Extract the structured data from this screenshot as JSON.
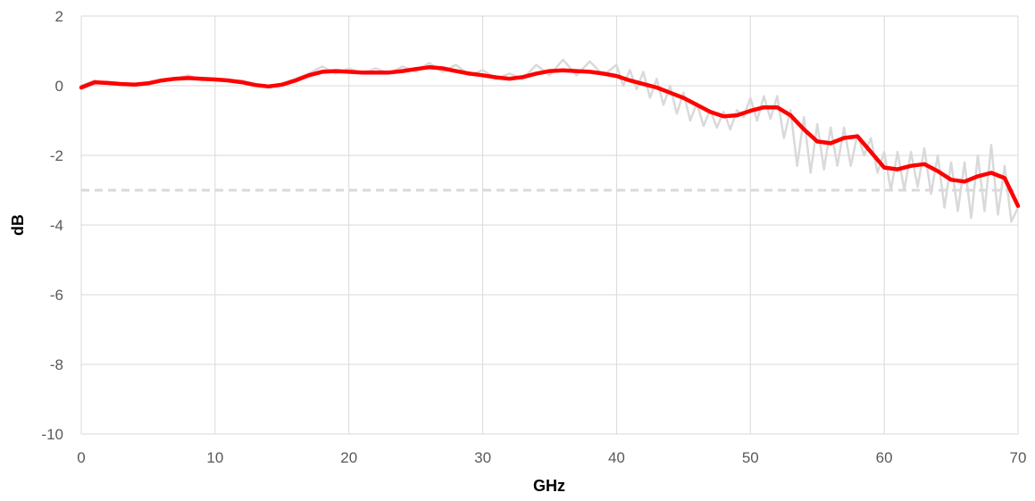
{
  "chart_data": {
    "type": "line",
    "title": "",
    "xlabel": "GHz",
    "ylabel": "dB",
    "xlim": [
      0,
      70
    ],
    "ylim": [
      -10,
      2
    ],
    "x_ticks": [
      0,
      10,
      20,
      30,
      40,
      50,
      60,
      70
    ],
    "y_ticks": [
      2,
      0,
      -2,
      -4,
      -6,
      -8,
      -10
    ],
    "x_tick_labels": [
      "0",
      "10",
      "20",
      "30",
      "40",
      "50",
      "60",
      "70"
    ],
    "y_tick_labels": [
      "2",
      "0",
      "-2",
      "-4",
      "-6",
      "-8",
      "-10"
    ],
    "grid": true,
    "legend": "none",
    "reference_line": {
      "y": -3,
      "style": "dashed",
      "color": "#d9d9d9"
    },
    "series": [
      {
        "role": "raw",
        "color": "#d9d9d9",
        "x": [
          0,
          1,
          2,
          3,
          4,
          5,
          6,
          7,
          8,
          9,
          10,
          11,
          12,
          13,
          14,
          15,
          16,
          17,
          18,
          19,
          20,
          21,
          22,
          23,
          24,
          25,
          26,
          27,
          28,
          29,
          30,
          31,
          32,
          33,
          34,
          35,
          36,
          37,
          38,
          39,
          40,
          40.5,
          41,
          41.5,
          42,
          42.5,
          43,
          43.5,
          44,
          44.5,
          45,
          45.5,
          46,
          46.5,
          47,
          47.5,
          48,
          48.5,
          49,
          49.5,
          50,
          50.5,
          51,
          51.5,
          52,
          52.5,
          53,
          53.5,
          54,
          54.5,
          55,
          55.5,
          56,
          56.5,
          57,
          57.5,
          58,
          58.5,
          59,
          59.5,
          60,
          60.5,
          61,
          61.5,
          62,
          62.5,
          63,
          63.5,
          64,
          64.5,
          65,
          65.5,
          66,
          66.5,
          67,
          67.5,
          68,
          68.5,
          69,
          69.5,
          70
        ],
        "y": [
          0.0,
          0.15,
          0.05,
          0.05,
          0.0,
          0.05,
          0.15,
          0.2,
          0.3,
          0.15,
          0.2,
          0.15,
          0.15,
          0.05,
          0.0,
          0.05,
          0.2,
          0.35,
          0.55,
          0.35,
          0.5,
          0.35,
          0.5,
          0.35,
          0.55,
          0.4,
          0.65,
          0.4,
          0.6,
          0.3,
          0.45,
          0.2,
          0.35,
          0.2,
          0.6,
          0.3,
          0.75,
          0.3,
          0.7,
          0.3,
          0.6,
          0.0,
          0.45,
          -0.1,
          0.4,
          -0.35,
          0.2,
          -0.55,
          0.0,
          -0.8,
          -0.2,
          -1.0,
          -0.5,
          -1.15,
          -0.7,
          -1.2,
          -0.75,
          -1.25,
          -0.7,
          -0.9,
          -0.35,
          -1.0,
          -0.3,
          -0.95,
          -0.3,
          -1.5,
          -0.7,
          -2.3,
          -0.9,
          -2.5,
          -1.1,
          -2.4,
          -1.2,
          -2.3,
          -1.2,
          -2.3,
          -1.4,
          -2.0,
          -1.5,
          -2.5,
          -1.9,
          -3.0,
          -1.9,
          -3.0,
          -1.9,
          -2.9,
          -1.8,
          -3.1,
          -2.0,
          -3.5,
          -2.2,
          -3.6,
          -2.2,
          -3.8,
          -2.0,
          -3.6,
          -1.7,
          -3.7,
          -2.3,
          -3.9,
          -3.5
        ]
      },
      {
        "role": "smoothed",
        "color": "#ff0000",
        "x": [
          0,
          1,
          2,
          3,
          4,
          5,
          6,
          7,
          8,
          9,
          10,
          11,
          12,
          13,
          14,
          15,
          16,
          17,
          18,
          19,
          20,
          21,
          22,
          23,
          24,
          25,
          26,
          27,
          28,
          29,
          30,
          31,
          32,
          33,
          34,
          35,
          36,
          37,
          38,
          39,
          40,
          41,
          42,
          43,
          44,
          45,
          46,
          47,
          48,
          49,
          50,
          51,
          52,
          53,
          54,
          55,
          56,
          57,
          58,
          59,
          60,
          61,
          62,
          63,
          64,
          65,
          66,
          67,
          68,
          69,
          70
        ],
        "y": [
          -0.05,
          0.1,
          0.08,
          0.05,
          0.03,
          0.07,
          0.15,
          0.2,
          0.22,
          0.2,
          0.18,
          0.15,
          0.1,
          0.02,
          -0.02,
          0.03,
          0.15,
          0.3,
          0.4,
          0.42,
          0.4,
          0.38,
          0.38,
          0.38,
          0.42,
          0.48,
          0.53,
          0.5,
          0.42,
          0.35,
          0.3,
          0.24,
          0.2,
          0.25,
          0.35,
          0.42,
          0.44,
          0.42,
          0.4,
          0.35,
          0.28,
          0.15,
          0.05,
          -0.05,
          -0.2,
          -0.35,
          -0.55,
          -0.75,
          -0.88,
          -0.85,
          -0.72,
          -0.62,
          -0.62,
          -0.85,
          -1.25,
          -1.6,
          -1.65,
          -1.5,
          -1.45,
          -1.9,
          -2.35,
          -2.4,
          -2.3,
          -2.25,
          -2.45,
          -2.7,
          -2.75,
          -2.6,
          -2.5,
          -2.65,
          -3.45
        ]
      }
    ]
  }
}
